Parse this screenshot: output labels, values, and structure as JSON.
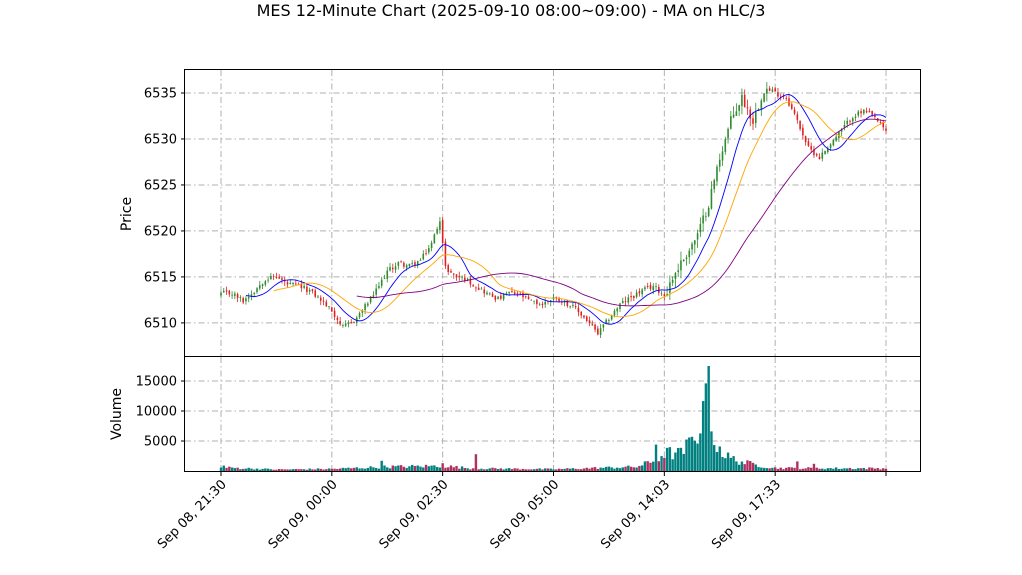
{
  "chart_data": {
    "type": "candlestick",
    "title": "MES 12-Minute Chart (2025-09-10 08:00~09:00) - MA on HLC/3",
    "colors": {
      "up": "#2e8b2e",
      "down": "#e02020",
      "vol_up": "#008080",
      "vol_down": "#b03060",
      "ma_fast": "#0000ff",
      "ma_mid": "#ffa500",
      "ma_slow": "#800080"
    },
    "grid": true,
    "price_panel": {
      "ylabel": "Price",
      "yticks": [
        6510,
        6515,
        6520,
        6525,
        6530,
        6535
      ],
      "ylim": [
        6506.4,
        6537.5
      ]
    },
    "volume_panel": {
      "ylabel": "Volume",
      "yticks": [
        5000,
        10000,
        15000
      ],
      "ylim": [
        0,
        19000
      ]
    },
    "xticks": [
      {
        "index": 0,
        "label": "Sep 08, 21:30"
      },
      {
        "index": 40,
        "label": "Sep 09, 00:00"
      },
      {
        "index": 80,
        "label": "Sep 09, 02:30"
      },
      {
        "index": 120,
        "label": "Sep 09, 05:00"
      },
      {
        "index": 160,
        "label": "Sep 09, 14:03"
      },
      {
        "index": 200,
        "label": "Sep 09, 17:33"
      },
      {
        "index": 240,
        "label": ""
      }
    ],
    "bar_count": 241,
    "price_anchors": [
      [
        0,
        6513.2
      ],
      [
        4,
        6513.2
      ],
      [
        8,
        6512.4
      ],
      [
        12,
        6513.5
      ],
      [
        16,
        6514.8
      ],
      [
        20,
        6515.0
      ],
      [
        24,
        6514.2
      ],
      [
        28,
        6514.0
      ],
      [
        32,
        6513.5
      ],
      [
        36,
        6512.5
      ],
      [
        40,
        6511.3
      ],
      [
        44,
        6509.5
      ],
      [
        48,
        6510.2
      ],
      [
        52,
        6511.8
      ],
      [
        56,
        6513.5
      ],
      [
        60,
        6515.6
      ],
      [
        64,
        6516.5
      ],
      [
        68,
        6516.2
      ],
      [
        72,
        6516.8
      ],
      [
        76,
        6518.6
      ],
      [
        79,
        6521.3
      ],
      [
        81,
        6516.0
      ],
      [
        84,
        6515.2
      ],
      [
        88,
        6514.8
      ],
      [
        92,
        6514.0
      ],
      [
        96,
        6513.2
      ],
      [
        100,
        6512.6
      ],
      [
        104,
        6513.3
      ],
      [
        108,
        6513.0
      ],
      [
        112,
        6512.3
      ],
      [
        116,
        6512.0
      ],
      [
        120,
        6512.8
      ],
      [
        124,
        6512.3
      ],
      [
        128,
        6511.5
      ],
      [
        132,
        6510.3
      ],
      [
        136,
        6508.8
      ],
      [
        140,
        6510.5
      ],
      [
        144,
        6512.0
      ],
      [
        148,
        6512.8
      ],
      [
        152,
        6513.5
      ],
      [
        156,
        6514.0
      ],
      [
        160,
        6513.0
      ],
      [
        164,
        6515.5
      ],
      [
        168,
        6517.5
      ],
      [
        172,
        6519.5
      ],
      [
        176,
        6523.0
      ],
      [
        180,
        6528.0
      ],
      [
        184,
        6532.0
      ],
      [
        188,
        6534.5
      ],
      [
        192,
        6532.0
      ],
      [
        196,
        6535.5
      ],
      [
        200,
        6535.0
      ],
      [
        204,
        6534.5
      ],
      [
        208,
        6532.0
      ],
      [
        212,
        6529.0
      ],
      [
        216,
        6528.0
      ],
      [
        220,
        6529.5
      ],
      [
        224,
        6531.0
      ],
      [
        228,
        6532.5
      ],
      [
        232,
        6533.0
      ],
      [
        236,
        6532.3
      ],
      [
        240,
        6530.8
      ]
    ],
    "volume_anchors": [
      [
        0,
        600
      ],
      [
        20,
        250
      ],
      [
        40,
        350
      ],
      [
        60,
        700
      ],
      [
        80,
        850
      ],
      [
        90,
        450
      ],
      [
        120,
        300
      ],
      [
        150,
        700
      ],
      [
        157,
        1800
      ],
      [
        160,
        3000
      ],
      [
        166,
        2900
      ],
      [
        170,
        5000
      ],
      [
        174,
        8500
      ],
      [
        176,
        13000
      ],
      [
        178,
        5500
      ],
      [
        182,
        2500
      ],
      [
        186,
        1800
      ],
      [
        190,
        1300
      ],
      [
        196,
        800
      ],
      [
        200,
        500
      ],
      [
        220,
        450
      ],
      [
        240,
        450
      ]
    ],
    "volume_spikes": [
      [
        1,
        900
      ],
      [
        58,
        1700
      ],
      [
        80,
        1300
      ],
      [
        92,
        2800
      ],
      [
        157,
        4400
      ],
      [
        175,
        14600
      ],
      [
        176,
        17500
      ],
      [
        177,
        6600
      ],
      [
        208,
        1600
      ],
      [
        214,
        1200
      ]
    ],
    "ma_params": {
      "fast": 10,
      "mid": 20,
      "slow": 50
    }
  }
}
